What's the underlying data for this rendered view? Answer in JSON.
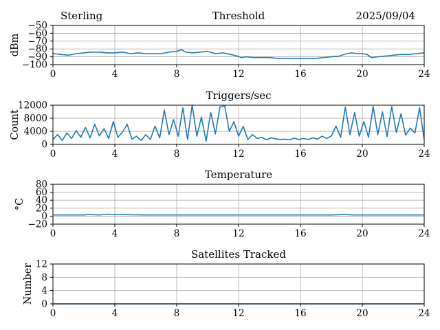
{
  "header": {
    "location": "Sterling",
    "date": "2025/09/04"
  },
  "colors": {
    "line": "#1f77b4",
    "grid": "#b0b0b0",
    "axis": "#000000"
  },
  "chart_data": [
    {
      "type": "line",
      "title": "Threshold",
      "ylabel": "dBm",
      "xlabel": "",
      "xlim": [
        0,
        24
      ],
      "ylim": [
        -100,
        -50
      ],
      "xticks": [
        "0",
        "4",
        "8",
        "12",
        "16",
        "20",
        "24"
      ],
      "yticks": [
        "−50",
        "−60",
        "−70",
        "−80",
        "−90",
        "−100"
      ],
      "grid": true,
      "series": [
        {
          "name": "threshold",
          "x": [
            0,
            0.5,
            1,
            1.5,
            2,
            2.5,
            3,
            3.5,
            4,
            4.5,
            5,
            5.5,
            6,
            6.5,
            7,
            7.5,
            8,
            8.3,
            8.6,
            9,
            9.5,
            10,
            10.5,
            11,
            11.5,
            11.9,
            12.2,
            12.5,
            13,
            13.5,
            14,
            14.5,
            15,
            15.5,
            16,
            16.5,
            17,
            17.5,
            18,
            18.5,
            19,
            19.3,
            19.7,
            20,
            20.3,
            20.6,
            21,
            21.5,
            22,
            22.5,
            23,
            23.5,
            24
          ],
          "y": [
            -86,
            -87,
            -88,
            -86,
            -85,
            -84,
            -84,
            -85,
            -85,
            -84,
            -86,
            -85,
            -86,
            -86,
            -86,
            -84,
            -83,
            -81,
            -84,
            -85,
            -84,
            -83,
            -86,
            -85,
            -87,
            -89,
            -91,
            -90,
            -91,
            -91,
            -91,
            -92,
            -92,
            -92,
            -92,
            -92,
            -92,
            -91,
            -90,
            -89,
            -86,
            -85,
            -86,
            -86,
            -87,
            -91,
            -90,
            -89,
            -88,
            -87,
            -87,
            -86,
            -85
          ]
        }
      ]
    },
    {
      "type": "line",
      "title": "Triggers/sec",
      "ylabel": "Count",
      "xlabel": "",
      "xlim": [
        0,
        24
      ],
      "ylim": [
        0,
        12000
      ],
      "xticks": [
        "0",
        "4",
        "8",
        "12",
        "16",
        "20",
        "24"
      ],
      "yticks": [
        "12000",
        "8000",
        "4000",
        "0"
      ],
      "grid": true,
      "series": [
        {
          "name": "triggers",
          "x": [
            0,
            0.3,
            0.6,
            0.9,
            1.2,
            1.5,
            1.8,
            2.1,
            2.4,
            2.7,
            3.0,
            3.3,
            3.6,
            3.9,
            4.2,
            4.5,
            4.8,
            5.1,
            5.4,
            5.7,
            6.0,
            6.3,
            6.6,
            6.9,
            7.2,
            7.5,
            7.8,
            8.1,
            8.4,
            8.7,
            9.0,
            9.3,
            9.6,
            9.9,
            10.2,
            10.5,
            10.8,
            11.1,
            11.4,
            11.7,
            12.0,
            12.3,
            12.6,
            12.9,
            13.2,
            13.5,
            13.8,
            14.1,
            14.4,
            14.7,
            15.0,
            15.3,
            15.6,
            15.9,
            16.2,
            16.5,
            16.8,
            17.1,
            17.4,
            17.7,
            18.0,
            18.3,
            18.6,
            18.9,
            19.2,
            19.5,
            19.8,
            20.1,
            20.4,
            20.7,
            21.0,
            21.3,
            21.6,
            21.9,
            22.2,
            22.5,
            22.8,
            23.1,
            23.4,
            23.7,
            24.0
          ],
          "y": [
            1500,
            3000,
            1200,
            3500,
            1800,
            4200,
            2200,
            5200,
            2000,
            6200,
            2600,
            4800,
            1800,
            7000,
            2200,
            3800,
            6200,
            1600,
            2500,
            1200,
            3000,
            1500,
            5600,
            2000,
            10500,
            3000,
            7600,
            2500,
            11200,
            1500,
            12000,
            2500,
            8400,
            1000,
            9800,
            3200,
            11500,
            11800,
            4000,
            7000,
            2500,
            5500,
            1500,
            3000,
            1800,
            2200,
            1400,
            2000,
            1700,
            1500,
            1600,
            1400,
            1900,
            1500,
            1800,
            1500,
            2000,
            1600,
            2500,
            1800,
            2600,
            5600,
            2200,
            11400,
            3000,
            9800,
            2500,
            7000,
            2200,
            11600,
            3000,
            10000,
            2400,
            11600,
            3600,
            9400,
            2800,
            5000,
            3500,
            11200,
            1500
          ]
        }
      ]
    },
    {
      "type": "line",
      "title": "Temperature",
      "ylabel": "°C",
      "xlabel": "",
      "xlim": [
        0,
        24
      ],
      "ylim": [
        -20,
        80
      ],
      "xticks": [
        "0",
        "4",
        "8",
        "12",
        "16",
        "20",
        "24"
      ],
      "yticks": [
        "80",
        "60",
        "40",
        "20",
        "0",
        "−20"
      ],
      "grid": true,
      "series": [
        {
          "name": "temperature",
          "x": [
            0,
            2,
            2.3,
            3,
            3.5,
            4,
            6,
            8,
            10,
            12,
            14,
            16,
            18,
            18.8,
            19.5,
            20,
            22,
            24
          ],
          "y": [
            3,
            3,
            4,
            3,
            5,
            4,
            3,
            3,
            3,
            3,
            3,
            3,
            3,
            4,
            3,
            3,
            3,
            3
          ]
        }
      ]
    },
    {
      "type": "line",
      "title": "Satellites Tracked",
      "ylabel": "Number",
      "xlabel": "",
      "xlim": [
        0,
        24
      ],
      "ylim": [
        0,
        12
      ],
      "xticks": [
        "0",
        "4",
        "8",
        "12",
        "16",
        "20",
        "24"
      ],
      "yticks": [
        "12",
        "8",
        "4",
        "0"
      ],
      "grid": true,
      "series": [
        {
          "name": "satellites",
          "x": [
            0,
            24
          ],
          "y": [
            0,
            0
          ]
        }
      ]
    }
  ]
}
